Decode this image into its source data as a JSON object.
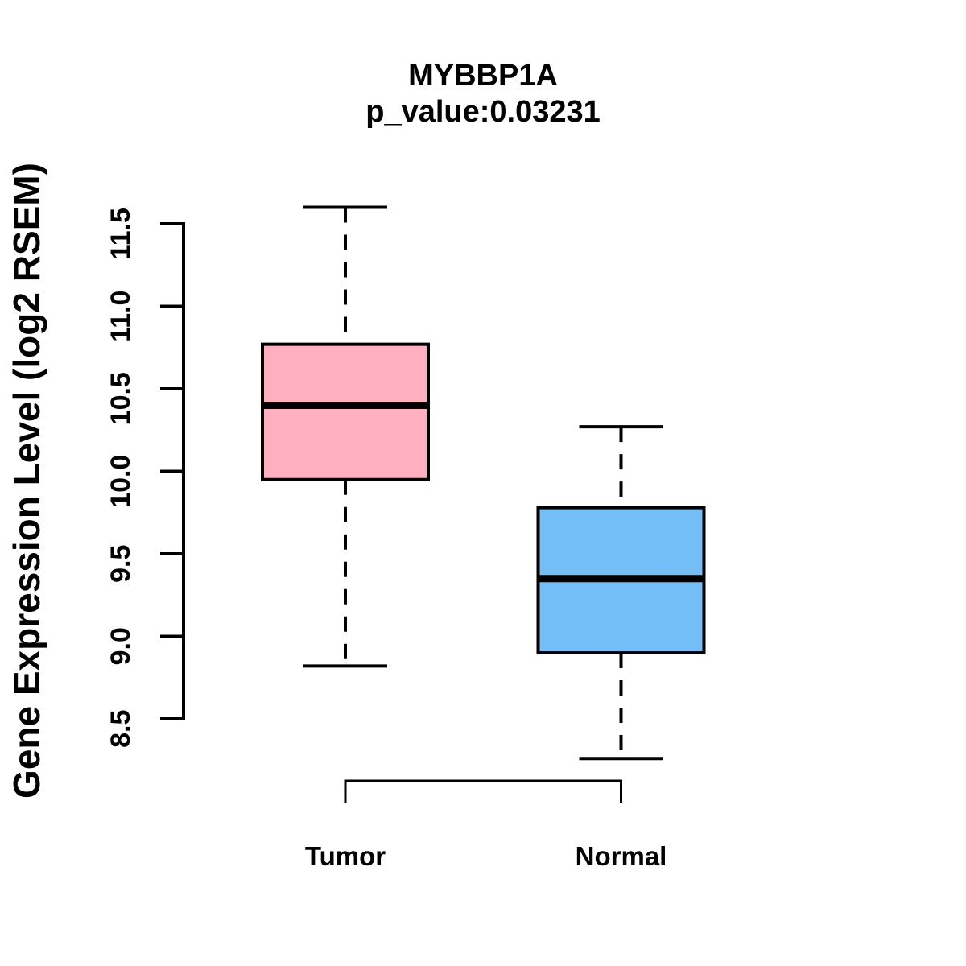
{
  "chart_data": {
    "type": "boxplot",
    "title": "MYBBP1A",
    "subtitle": "p_value:0.03231",
    "p_value": 0.03231,
    "ylabel": "Gene Expression Level (log2 RSEM)",
    "background_color": "#FFFFFF",
    "line_color": "#000000",
    "grid": false,
    "legend_position": "none",
    "y_axis": {
      "min": 8.5,
      "max": 11.5,
      "tick_step": 0.5,
      "tick_labels": [
        "8.5",
        "9.0",
        "9.5",
        "10.0",
        "10.5",
        "11.0",
        "11.5"
      ]
    },
    "categories": [
      "Tumor",
      "Normal"
    ],
    "series": [
      {
        "name": "Tumor",
        "color": "#FFAFC0",
        "stats": {
          "whisker_low": 8.82,
          "q1": 9.95,
          "median": 10.4,
          "q3": 10.77,
          "whisker_high": 11.6
        }
      },
      {
        "name": "Normal",
        "color": "#73BEF6",
        "stats": {
          "whisker_low": 8.26,
          "q1": 8.9,
          "median": 9.35,
          "q3": 9.78,
          "whisker_high": 10.27
        }
      }
    ],
    "comparison_bracket": {
      "from": "Tumor",
      "to": "Normal"
    }
  }
}
